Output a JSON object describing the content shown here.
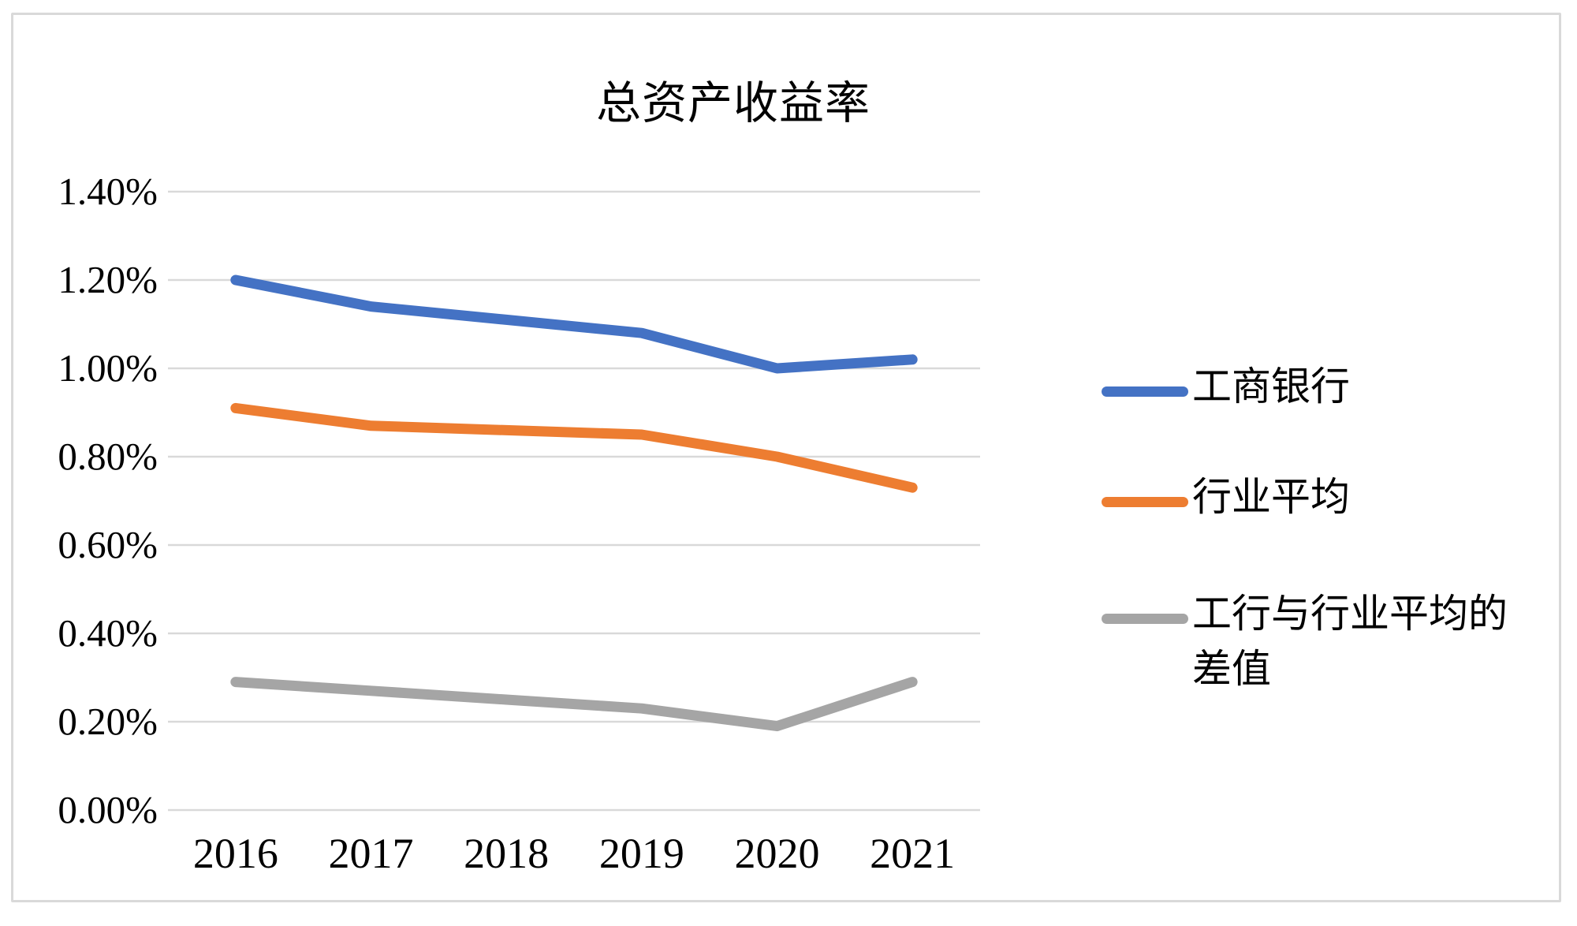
{
  "chart_data": {
    "type": "line",
    "title": "总资产收益率",
    "categories": [
      "2016",
      "2017",
      "2018",
      "2019",
      "2020",
      "2021"
    ],
    "series": [
      {
        "name": "工商银行",
        "color": "#4472C4",
        "values": [
          1.2,
          1.14,
          1.11,
          1.08,
          1.0,
          1.02
        ]
      },
      {
        "name": "行业平均",
        "color": "#ED7D31",
        "values": [
          0.91,
          0.87,
          0.86,
          0.85,
          0.8,
          0.73
        ]
      },
      {
        "name": "工行与行业平均的差值",
        "color": "#A5A5A5",
        "values": [
          0.29,
          0.27,
          0.25,
          0.23,
          0.19,
          0.29
        ]
      }
    ],
    "xlabel": "",
    "ylabel": "",
    "ylim": [
      0,
      1.4
    ],
    "ytick_step": 0.2,
    "ytick_labels": [
      "0.00%",
      "0.20%",
      "0.40%",
      "0.60%",
      "0.80%",
      "1.00%",
      "1.20%",
      "1.40%"
    ],
    "grid": true,
    "gridline_color": "#D9D9D9",
    "border_color": "#D9D9D9",
    "text_color": "#000000",
    "legend_position": "right",
    "line_width": 13
  }
}
